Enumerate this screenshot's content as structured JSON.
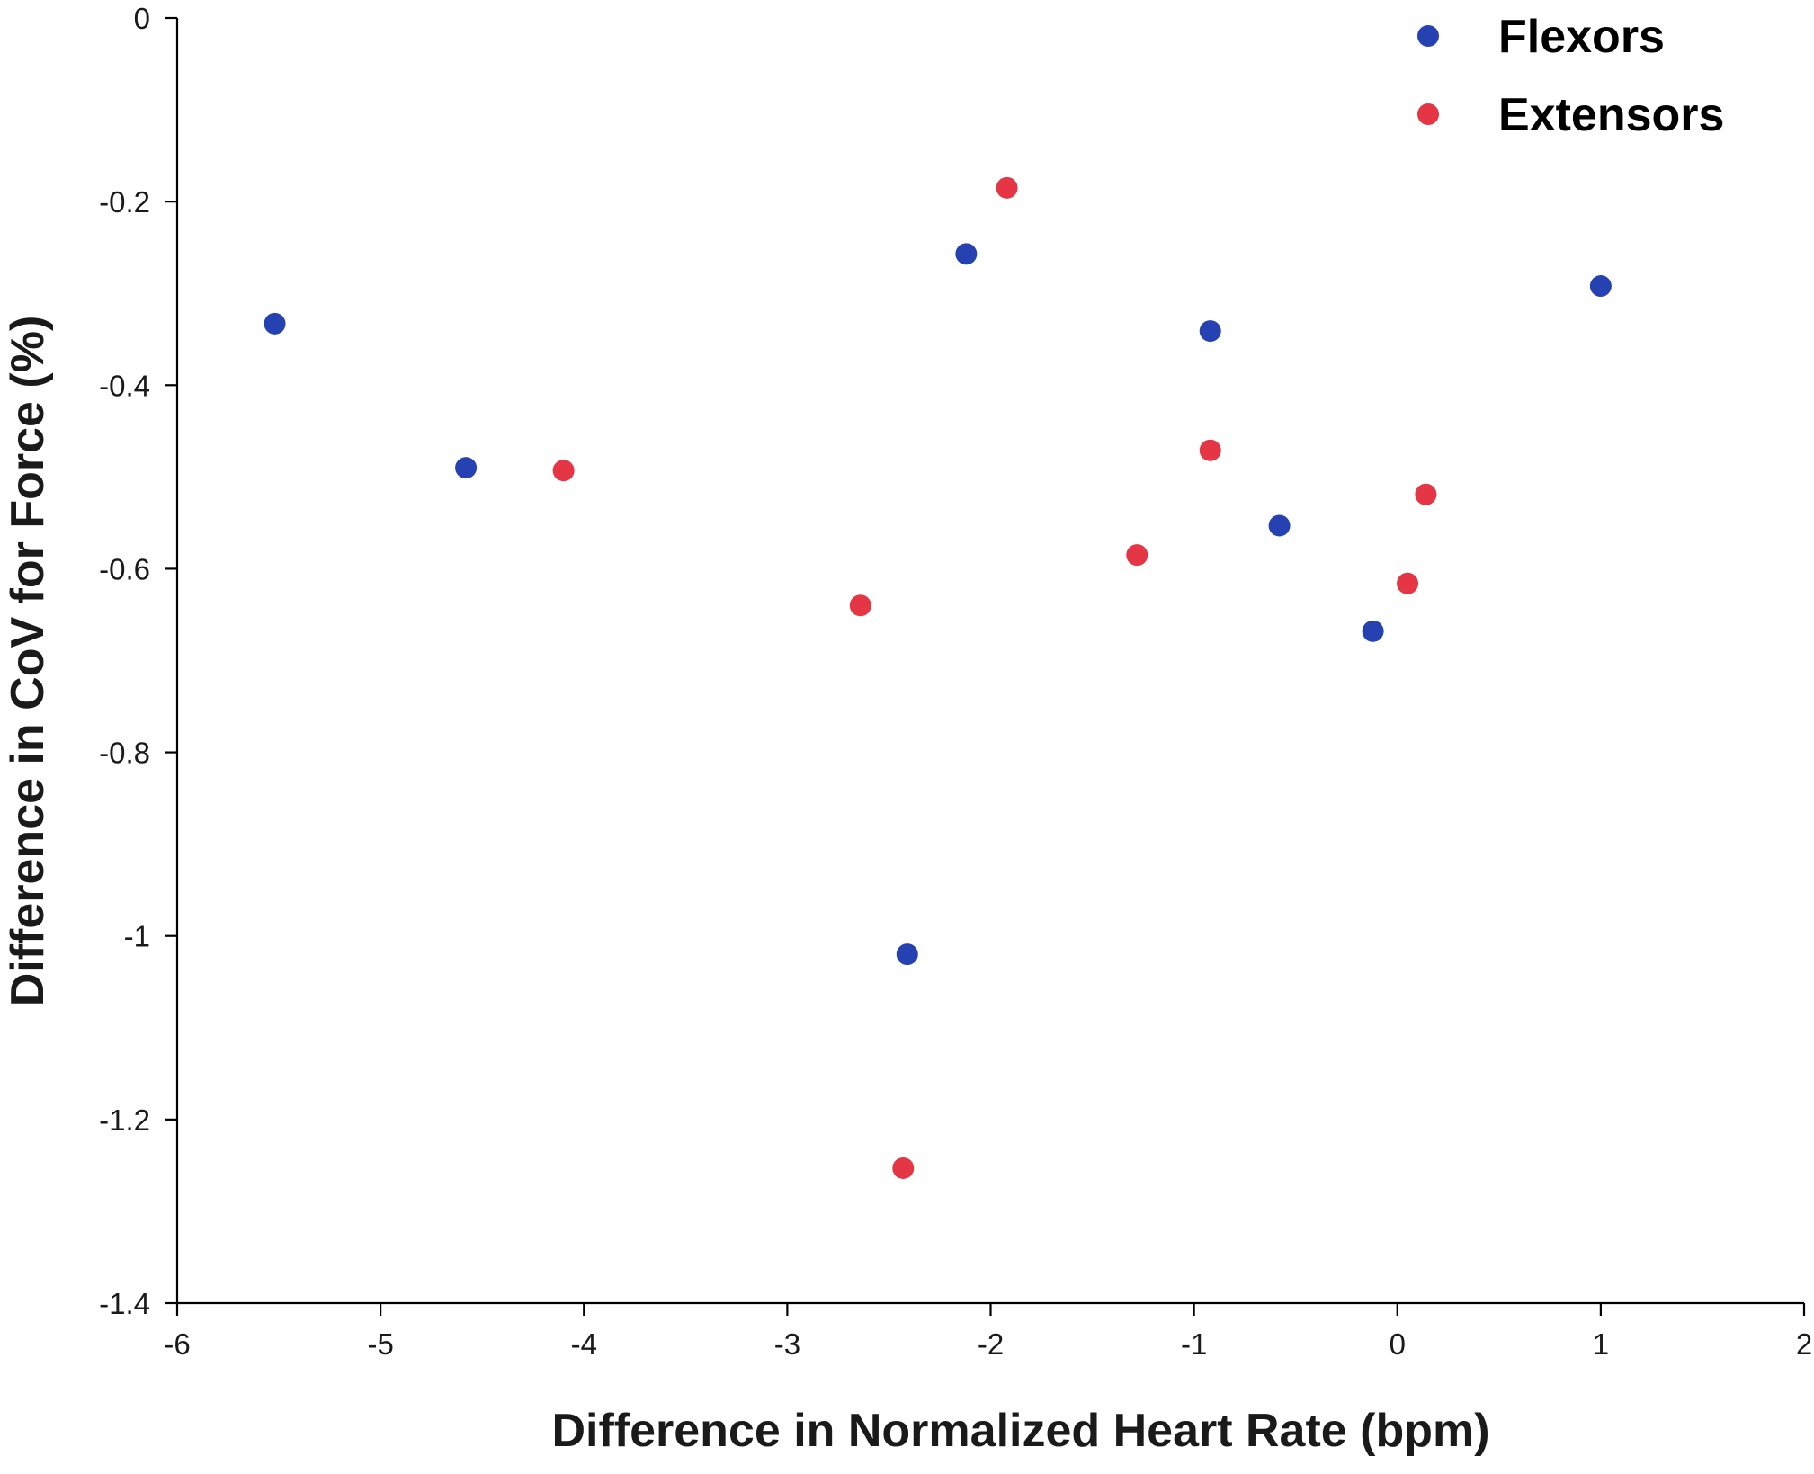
{
  "chart_data": {
    "type": "scatter",
    "xlabel": "Difference in Normalized Heart Rate (bpm)",
    "ylabel": "Difference in CoV for Force (%)",
    "xlim": [
      -6,
      2
    ],
    "ylim": [
      -1.4,
      0
    ],
    "xticks": [
      -6,
      -5,
      -4,
      -3,
      -2,
      -1,
      0,
      1,
      2
    ],
    "yticks": [
      0,
      -0.2,
      -0.4,
      -0.6,
      -0.8,
      -1,
      -1.2,
      -1.4
    ],
    "xtick_labels": [
      "-6",
      "-5",
      "-4",
      "-3",
      "-2",
      "-1",
      "0",
      "1",
      "2"
    ],
    "ytick_labels": [
      "0",
      "-0.2",
      "-0.4",
      "-0.6",
      "-0.8",
      "-1",
      "-1.2",
      "-1.4"
    ],
    "grid": false,
    "legend_position": "top-right",
    "series": [
      {
        "name": "Flexors",
        "color": "#2541b2",
        "x": [
          -5.52,
          -4.58,
          -2.12,
          -0.92,
          1.0,
          -0.58,
          -0.12,
          -2.41
        ],
        "y": [
          -0.333,
          -0.49,
          -0.257,
          -0.341,
          -0.292,
          -0.553,
          -0.668,
          -1.02
        ]
      },
      {
        "name": "Extensors",
        "color": "#e53645",
        "x": [
          -1.92,
          -4.1,
          -0.92,
          0.14,
          -1.28,
          0.05,
          -2.64,
          -2.43
        ],
        "y": [
          -0.185,
          -0.493,
          -0.471,
          -0.519,
          -0.585,
          -0.616,
          -0.64,
          -1.253
        ]
      }
    ]
  }
}
